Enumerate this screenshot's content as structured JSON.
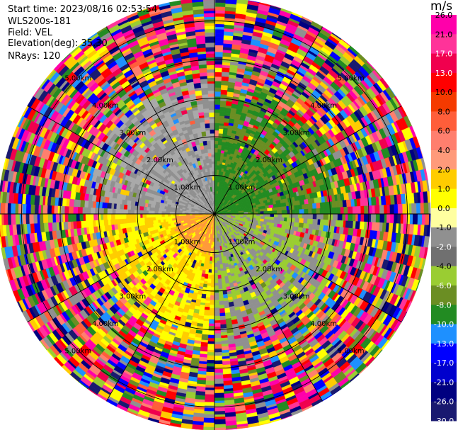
{
  "header": {
    "start_time": "Start time: 2023/08/16 02:53:54",
    "instrument": "WLS200s-181",
    "field": "Field: VEL",
    "elevation": "Elevation(deg): 35.30",
    "nrays": "NRays: 120"
  },
  "colorbar": {
    "unit": "m/s",
    "ticks": [
      "26.0",
      "21.0",
      "17.0",
      "13.0",
      "10.0",
      "8.0",
      "6.0",
      "4.0",
      "2.0",
      "1.0",
      "0.0",
      "-1.0",
      "-2.0",
      "-4.0",
      "-6.0",
      "-8.0",
      "-10.0",
      "-13.0",
      "-17.0",
      "-21.0",
      "-26.0",
      "-30.0"
    ],
    "colors": [
      "#ff00aa",
      "#ff3399",
      "#f0004e",
      "#ff0000",
      "#f53a00",
      "#ff5e3a",
      "#ff7f6e",
      "#ff9a7a",
      "#ffcc00",
      "#ffff00",
      "#ffffa0",
      "#909090",
      "#707070",
      "#9acd32",
      "#6b8e23",
      "#228b22",
      "#1e90ff",
      "#0000ff",
      "#0000cd",
      "#000080",
      "#191970"
    ]
  },
  "chart_data": {
    "type": "ppi",
    "field": "VEL",
    "units": "m/s",
    "nrays": 120,
    "elevation_deg": 35.3,
    "range_rings_km": [
      1.0,
      2.0,
      3.0,
      4.0,
      5.0
    ],
    "ring_labels": [
      "1.00km",
      "2.00km",
      "3.00km",
      "4.00km",
      "5.00km"
    ],
    "max_range_km": 5.6,
    "azimuth_lines_deg": [
      0,
      30,
      60,
      90,
      120,
      150,
      180,
      210,
      240,
      270,
      300,
      330
    ],
    "near_field": [
      {
        "azimuth_range_deg": [
          0,
          90
        ],
        "velocity_ms": -4.0,
        "inner_color": "#228b22"
      },
      {
        "azimuth_range_deg": [
          90,
          180
        ],
        "velocity_ms": -1.0
      },
      {
        "azimuth_range_deg": [
          180,
          270
        ],
        "velocity_ms": 2.0,
        "inner_color": "#ff9a3a"
      },
      {
        "azimuth_range_deg": [
          270,
          360
        ],
        "velocity_ms": 0.0
      }
    ],
    "coherent_range_km": 3.4,
    "noise_range_km": [
      3.4,
      5.6
    ]
  }
}
